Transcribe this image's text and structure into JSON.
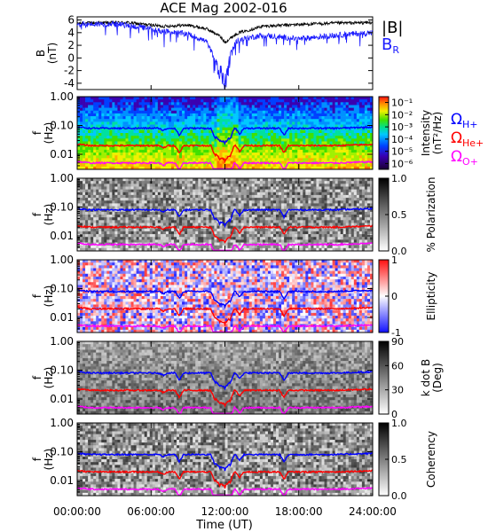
{
  "title": "ACE Mag 2002-016",
  "x_axis": {
    "label": "Time (UT)",
    "ticks": [
      "00:00:00",
      "06:00:00",
      "12:00:00",
      "18:00:00",
      "24:00:00"
    ]
  },
  "colors": {
    "B_total": "#000000",
    "B_R": "#1a1aff",
    "H_plus": "#0000ff",
    "He_plus": "#ff0000",
    "O_plus": "#ff00ff"
  },
  "legend": {
    "b_total": "|B|",
    "b_r": "B",
    "b_r_sub": "R",
    "omega": "Ω",
    "h_sub": "H+",
    "he_sub": "He+",
    "o_sub": "O+"
  },
  "panels": {
    "b": {
      "ylabel": "B",
      "yunit": "(nT)"
    },
    "freq": {
      "ylabel": "f",
      "yunit": "(Hz)"
    },
    "intensity": {
      "cb_title": "Intensity",
      "cb_unit": "(nT²/Hz)"
    },
    "polarization": {
      "cb_title": "% Polarization"
    },
    "ellipticity": {
      "cb_title": "Ellipticity"
    },
    "kdotb": {
      "cb_title": "k dot B",
      "cb_unit": "(Deg)"
    },
    "coherency": {
      "cb_title": "Coherency"
    }
  },
  "chart_data": [
    {
      "type": "line",
      "name": "magnetic-field",
      "x_range_hours": [
        0,
        24
      ],
      "ylim": [
        -5,
        6.5
      ],
      "yticks": [
        "6",
        "4",
        "2",
        "0",
        "-2",
        "-4"
      ],
      "series": [
        {
          "name": "|B|",
          "color": "#000000",
          "keypoints_hours": [
            0,
            4,
            7,
            9,
            10.5,
            11.5,
            12,
            13,
            15,
            18,
            21,
            24
          ],
          "values": [
            5.5,
            5.6,
            5.0,
            5.2,
            4.6,
            3.6,
            2.5,
            3.9,
            5.0,
            5.3,
            5.5,
            5.6
          ]
        },
        {
          "name": "B_R",
          "color": "#1a1aff",
          "keypoints_hours": [
            0,
            3,
            5,
            7,
            9,
            10.5,
            11.5,
            12,
            12.5,
            13,
            15,
            18,
            21,
            24
          ],
          "values": [
            5.3,
            5.4,
            4.9,
            4.2,
            3.8,
            2.6,
            -1.5,
            -4.0,
            1.0,
            2.8,
            3.6,
            3.0,
            3.6,
            4.0
          ]
        }
      ]
    },
    {
      "type": "heatmap",
      "name": "wave-spectrograms",
      "x_range_hours": [
        0,
        24
      ],
      "ylim_hz": [
        0.003,
        1.0
      ],
      "yscale": "log",
      "yticks": [
        "1.00",
        "0.10",
        "0.01"
      ],
      "panels": [
        "Intensity",
        "% Polarization",
        "Ellipticity",
        "k dot B",
        "Coherency"
      ],
      "colorbars": {
        "intensity": {
          "scale": "log",
          "ticks": [
            "10⁻¹",
            "10⁻²",
            "10⁻³",
            "10⁻⁴",
            "10⁻⁵",
            "10⁻⁶"
          ]
        },
        "polarization": {
          "range": [
            0,
            1
          ],
          "ticks": [
            "1.0",
            "0.5",
            "0.0"
          ]
        },
        "ellipticity": {
          "range": [
            -1,
            1
          ],
          "ticks": [
            "1",
            "0",
            "-1"
          ]
        },
        "kdotb": {
          "range": [
            0,
            90
          ],
          "ticks": [
            "90",
            "60",
            "30",
            "0"
          ]
        },
        "coherency": {
          "range": [
            0,
            1
          ],
          "ticks": [
            "1.0",
            "0.5",
            "0.0"
          ]
        }
      },
      "gyrofrequency_lines": [
        {
          "name": "Ω H+",
          "color": "#0000ff",
          "approx_hz": 0.08
        },
        {
          "name": "Ω He+",
          "color": "#ff0000",
          "approx_hz": 0.02
        },
        {
          "name": "Ω O+",
          "color": "#ff00ff",
          "approx_hz": 0.005
        }
      ]
    }
  ]
}
